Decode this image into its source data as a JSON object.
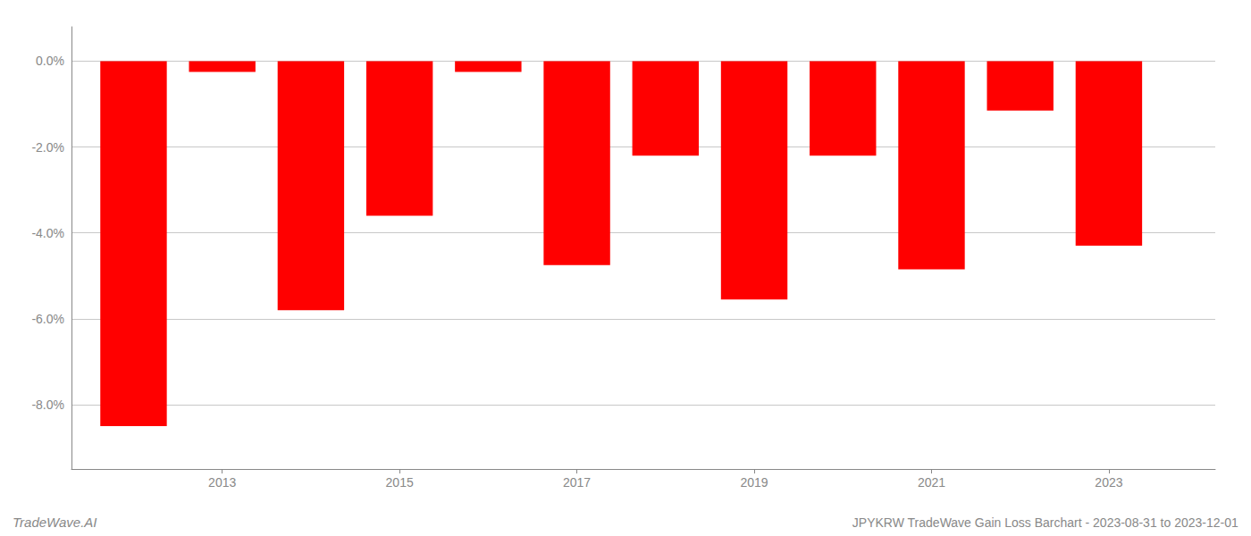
{
  "chart_data": {
    "type": "bar",
    "x": [
      2012,
      2013,
      2014,
      2015,
      2016,
      2017,
      2018,
      2019,
      2020,
      2021,
      2022,
      2023
    ],
    "values": [
      -8.5,
      -0.25,
      -5.8,
      -3.6,
      -0.25,
      -4.75,
      -2.2,
      -5.55,
      -2.2,
      -4.85,
      -1.15,
      -4.3
    ],
    "color": "#ff0000",
    "xlim": [
      2011.3,
      2024.2
    ],
    "xticks": [
      2013,
      2015,
      2017,
      2019,
      2021,
      2023
    ],
    "ylim": [
      -9.5,
      0.8
    ],
    "yticks": [
      {
        "value": 0.0,
        "label": "0.0%"
      },
      {
        "value": -2.0,
        "label": "-2.0%"
      },
      {
        "value": -4.0,
        "label": "-4.0%"
      },
      {
        "value": -6.0,
        "label": "-6.0%"
      },
      {
        "value": -8.0,
        "label": "-8.0%"
      }
    ],
    "grid": true,
    "annotations": [
      "TradeWave.AI",
      "JPYKRW TradeWave Gain Loss Barchart - 2023-08-31 to 2023-12-01"
    ]
  }
}
